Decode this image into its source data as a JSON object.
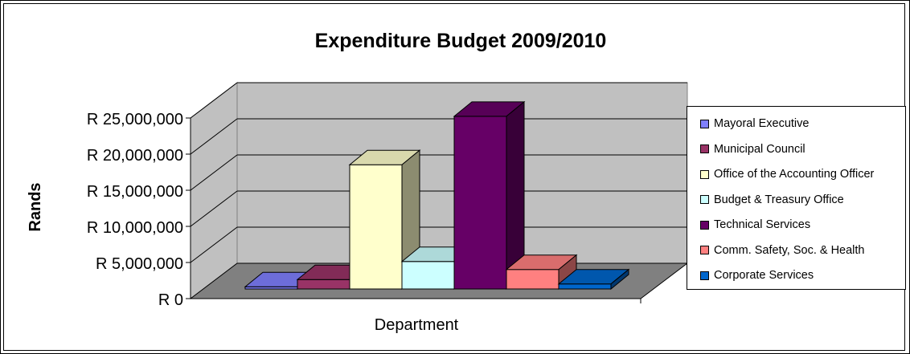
{
  "chart_data": {
    "type": "bar",
    "title": "Expenditure Budget 2009/2010",
    "xlabel": "Department",
    "ylabel": "Rands",
    "ylim": [
      0,
      25000000
    ],
    "y_ticks": [
      "R 0",
      "R 5,000,000",
      "R 10,000,000",
      "R 15,000,000",
      "R 20,000,000",
      "R 25,000,000"
    ],
    "grid": true,
    "legend_position": "right",
    "series": [
      {
        "name": "Mayoral Executive",
        "value": 300000,
        "color": "#8080ff"
      },
      {
        "name": "Municipal Council",
        "value": 1300000,
        "color": "#993366"
      },
      {
        "name": "Office of the Accounting Officer",
        "value": 17200000,
        "color": "#ffffcc"
      },
      {
        "name": "Budget & Treasury Office",
        "value": 3800000,
        "color": "#ccffff"
      },
      {
        "name": "Technical Services",
        "value": 23900000,
        "color": "#660066"
      },
      {
        "name": "Comm. Safety, Soc. & Health",
        "value": 2700000,
        "color": "#ff8080"
      },
      {
        "name": "Corporate Services",
        "value": 700000,
        "color": "#0066cc"
      }
    ]
  }
}
